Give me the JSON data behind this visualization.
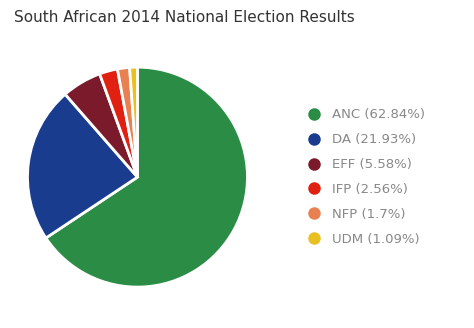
{
  "title": "South African 2014 National Election Results",
  "labels": [
    "ANC (62.84%)",
    "DA (21.93%)",
    "EFF (5.58%)",
    "IFP (2.56%)",
    "NFP (1.7%)",
    "UDM (1.09%)"
  ],
  "values": [
    62.84,
    21.93,
    5.58,
    2.56,
    1.7,
    1.09
  ],
  "colors": [
    "#2a8c45",
    "#1a3c8f",
    "#7b1a2a",
    "#e02010",
    "#e88050",
    "#e8c020"
  ],
  "background_color": "#ffffff",
  "title_fontsize": 11,
  "startangle": 90,
  "legend_fontsize": 9.5,
  "legend_text_color": "#888888"
}
